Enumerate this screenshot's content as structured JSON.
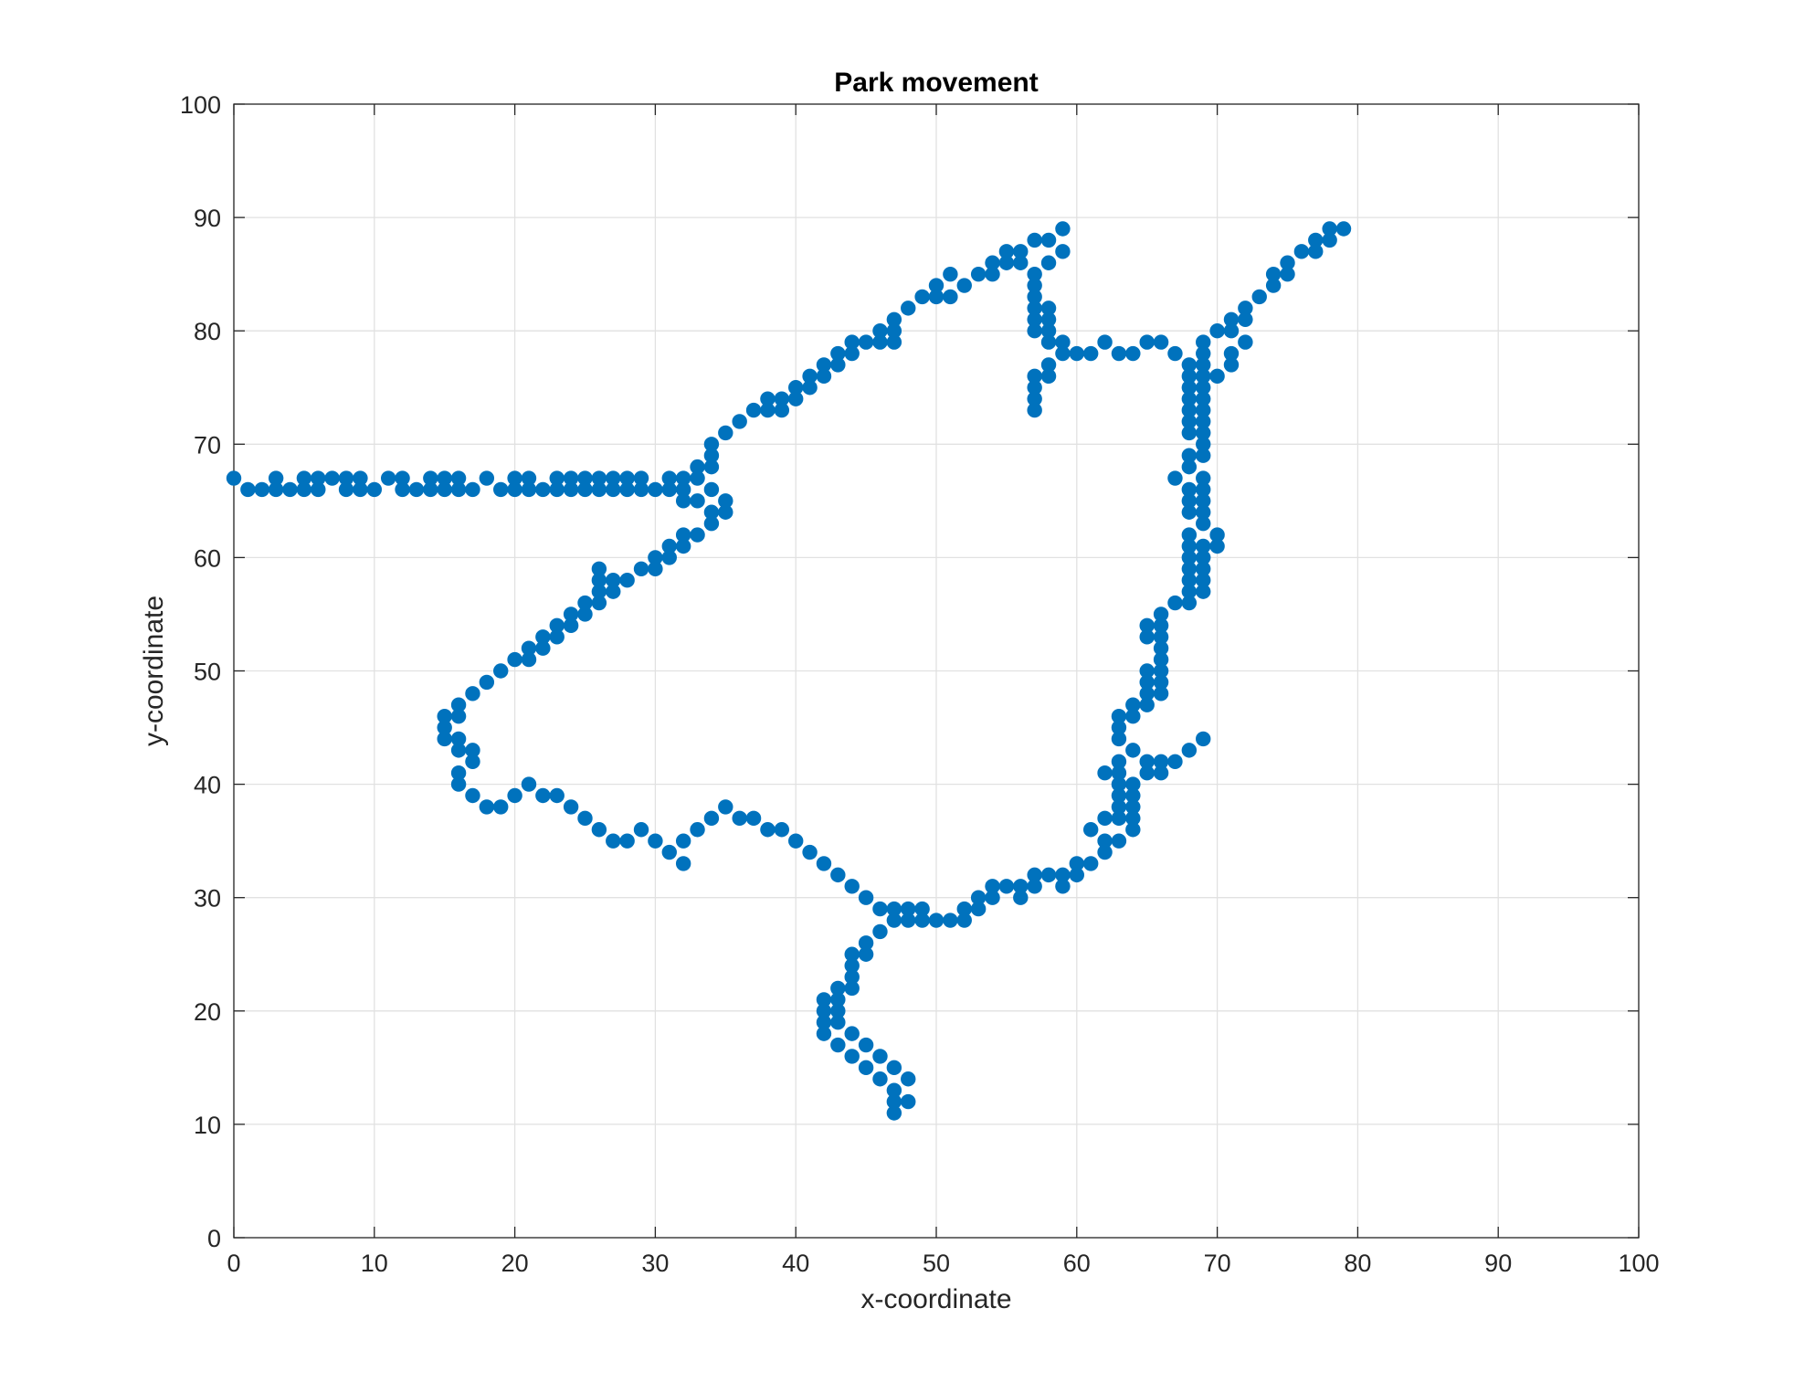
{
  "chart_data": {
    "type": "scatter",
    "title": "Park movement",
    "xlabel": "x-coordinate",
    "ylabel": "y-coordinate",
    "xlim": [
      0,
      100
    ],
    "ylim": [
      0,
      100
    ],
    "xticks": [
      "0",
      "10",
      "20",
      "30",
      "40",
      "50",
      "60",
      "70",
      "80",
      "90",
      "100"
    ],
    "yticks": [
      "0",
      "10",
      "20",
      "30",
      "40",
      "50",
      "60",
      "70",
      "80",
      "90",
      "100"
    ],
    "grid": true,
    "marker_color": "#0072BD",
    "points": [
      [
        0,
        67
      ],
      [
        1,
        66
      ],
      [
        2,
        66
      ],
      [
        3,
        67
      ],
      [
        3,
        66
      ],
      [
        4,
        66
      ],
      [
        5,
        67
      ],
      [
        5,
        66
      ],
      [
        6,
        67
      ],
      [
        6,
        66
      ],
      [
        7,
        67
      ],
      [
        8,
        67
      ],
      [
        8,
        66
      ],
      [
        9,
        67
      ],
      [
        9,
        66
      ],
      [
        10,
        66
      ],
      [
        11,
        67
      ],
      [
        12,
        67
      ],
      [
        12,
        66
      ],
      [
        13,
        66
      ],
      [
        14,
        67
      ],
      [
        14,
        66
      ],
      [
        15,
        67
      ],
      [
        15,
        66
      ],
      [
        16,
        67
      ],
      [
        16,
        66
      ],
      [
        17,
        66
      ],
      [
        18,
        67
      ],
      [
        19,
        66
      ],
      [
        20,
        67
      ],
      [
        20,
        66
      ],
      [
        21,
        67
      ],
      [
        21,
        66
      ],
      [
        22,
        66
      ],
      [
        23,
        67
      ],
      [
        23,
        66
      ],
      [
        24,
        67
      ],
      [
        24,
        66
      ],
      [
        25,
        67
      ],
      [
        25,
        66
      ],
      [
        26,
        67
      ],
      [
        26,
        66
      ],
      [
        27,
        67
      ],
      [
        27,
        66
      ],
      [
        28,
        67
      ],
      [
        28,
        66
      ],
      [
        29,
        67
      ],
      [
        29,
        66
      ],
      [
        30,
        66
      ],
      [
        31,
        67
      ],
      [
        31,
        66
      ],
      [
        32,
        67
      ],
      [
        32,
        66
      ],
      [
        32,
        65
      ],
      [
        33,
        68
      ],
      [
        33,
        67
      ],
      [
        33,
        65
      ],
      [
        34,
        70
      ],
      [
        34,
        69
      ],
      [
        34,
        68
      ],
      [
        34,
        66
      ],
      [
        34,
        64
      ],
      [
        34,
        63
      ],
      [
        35,
        65
      ],
      [
        35,
        64
      ],
      [
        35,
        71
      ],
      [
        36,
        72
      ],
      [
        37,
        73
      ],
      [
        38,
        74
      ],
      [
        38,
        73
      ],
      [
        39,
        74
      ],
      [
        39,
        73
      ],
      [
        40,
        75
      ],
      [
        40,
        74
      ],
      [
        41,
        76
      ],
      [
        41,
        75
      ],
      [
        42,
        77
      ],
      [
        42,
        76
      ],
      [
        43,
        78
      ],
      [
        43,
        77
      ],
      [
        44,
        79
      ],
      [
        44,
        78
      ],
      [
        45,
        79
      ],
      [
        46,
        80
      ],
      [
        46,
        79
      ],
      [
        47,
        81
      ],
      [
        47,
        80
      ],
      [
        47,
        79
      ],
      [
        48,
        82
      ],
      [
        49,
        83
      ],
      [
        50,
        84
      ],
      [
        50,
        83
      ],
      [
        51,
        85
      ],
      [
        51,
        83
      ],
      [
        52,
        84
      ],
      [
        53,
        85
      ],
      [
        54,
        86
      ],
      [
        54,
        85
      ],
      [
        55,
        87
      ],
      [
        55,
        86
      ],
      [
        56,
        87
      ],
      [
        56,
        86
      ],
      [
        57,
        88
      ],
      [
        57,
        85
      ],
      [
        57,
        84
      ],
      [
        57,
        83
      ],
      [
        57,
        82
      ],
      [
        57,
        81
      ],
      [
        57,
        80
      ],
      [
        57,
        76
      ],
      [
        57,
        75
      ],
      [
        57,
        74
      ],
      [
        57,
        73
      ],
      [
        58,
        88
      ],
      [
        58,
        86
      ],
      [
        58,
        82
      ],
      [
        58,
        81
      ],
      [
        58,
        80
      ],
      [
        58,
        79
      ],
      [
        58,
        77
      ],
      [
        58,
        76
      ],
      [
        59,
        89
      ],
      [
        59,
        87
      ],
      [
        59,
        79
      ],
      [
        59,
        78
      ],
      [
        60,
        78
      ],
      [
        61,
        78
      ],
      [
        62,
        79
      ],
      [
        63,
        78
      ],
      [
        64,
        78
      ],
      [
        65,
        79
      ],
      [
        66,
        79
      ],
      [
        67,
        78
      ],
      [
        68,
        77
      ],
      [
        68,
        76
      ],
      [
        68,
        75
      ],
      [
        68,
        74
      ],
      [
        68,
        73
      ],
      [
        68,
        72
      ],
      [
        68,
        71
      ],
      [
        68,
        69
      ],
      [
        68,
        68
      ],
      [
        68,
        66
      ],
      [
        68,
        65
      ],
      [
        68,
        64
      ],
      [
        68,
        62
      ],
      [
        68,
        61
      ],
      [
        68,
        60
      ],
      [
        68,
        59
      ],
      [
        68,
        58
      ],
      [
        68,
        57
      ],
      [
        68,
        56
      ],
      [
        67,
        67
      ],
      [
        69,
        79
      ],
      [
        69,
        78
      ],
      [
        69,
        77
      ],
      [
        69,
        76
      ],
      [
        69,
        75
      ],
      [
        69,
        74
      ],
      [
        69,
        73
      ],
      [
        69,
        72
      ],
      [
        69,
        71
      ],
      [
        69,
        70
      ],
      [
        69,
        69
      ],
      [
        69,
        67
      ],
      [
        69,
        66
      ],
      [
        69,
        65
      ],
      [
        69,
        64
      ],
      [
        69,
        63
      ],
      [
        69,
        61
      ],
      [
        69,
        60
      ],
      [
        69,
        59
      ],
      [
        69,
        58
      ],
      [
        69,
        57
      ],
      [
        70,
        80
      ],
      [
        70,
        76
      ],
      [
        70,
        62
      ],
      [
        70,
        61
      ],
      [
        71,
        81
      ],
      [
        71,
        80
      ],
      [
        71,
        78
      ],
      [
        71,
        77
      ],
      [
        72,
        82
      ],
      [
        72,
        81
      ],
      [
        72,
        79
      ],
      [
        73,
        83
      ],
      [
        74,
        85
      ],
      [
        74,
        84
      ],
      [
        75,
        86
      ],
      [
        75,
        85
      ],
      [
        76,
        87
      ],
      [
        77,
        88
      ],
      [
        77,
        87
      ],
      [
        78,
        89
      ],
      [
        78,
        88
      ],
      [
        79,
        89
      ],
      [
        67,
        56
      ],
      [
        66,
        55
      ],
      [
        66,
        54
      ],
      [
        66,
        53
      ],
      [
        66,
        52
      ],
      [
        66,
        51
      ],
      [
        66,
        50
      ],
      [
        66,
        49
      ],
      [
        66,
        48
      ],
      [
        65,
        54
      ],
      [
        65,
        53
      ],
      [
        65,
        50
      ],
      [
        65,
        49
      ],
      [
        65,
        48
      ],
      [
        65,
        47
      ],
      [
        64,
        47
      ],
      [
        64,
        46
      ],
      [
        63,
        46
      ],
      [
        63,
        45
      ],
      [
        63,
        44
      ],
      [
        64,
        43
      ],
      [
        63,
        42
      ],
      [
        63,
        41
      ],
      [
        62,
        41
      ],
      [
        63,
        40
      ],
      [
        63,
        39
      ],
      [
        63,
        38
      ],
      [
        63,
        37
      ],
      [
        64,
        40
      ],
      [
        64,
        39
      ],
      [
        64,
        38
      ],
      [
        64,
        37
      ],
      [
        64,
        36
      ],
      [
        65,
        42
      ],
      [
        65,
        41
      ],
      [
        66,
        42
      ],
      [
        66,
        41
      ],
      [
        67,
        42
      ],
      [
        68,
        43
      ],
      [
        69,
        44
      ],
      [
        62,
        37
      ],
      [
        61,
        36
      ],
      [
        63,
        35
      ],
      [
        62,
        35
      ],
      [
        62,
        34
      ],
      [
        61,
        33
      ],
      [
        60,
        33
      ],
      [
        60,
        32
      ],
      [
        59,
        32
      ],
      [
        59,
        31
      ],
      [
        58,
        32
      ],
      [
        57,
        32
      ],
      [
        57,
        31
      ],
      [
        56,
        31
      ],
      [
        56,
        30
      ],
      [
        55,
        31
      ],
      [
        54,
        31
      ],
      [
        54,
        30
      ],
      [
        53,
        30
      ],
      [
        53,
        29
      ],
      [
        52,
        29
      ],
      [
        52,
        28
      ],
      [
        51,
        28
      ],
      [
        50,
        28
      ],
      [
        49,
        29
      ],
      [
        49,
        28
      ],
      [
        48,
        29
      ],
      [
        48,
        28
      ],
      [
        47,
        29
      ],
      [
        47,
        28
      ],
      [
        46,
        29
      ],
      [
        45,
        30
      ],
      [
        44,
        31
      ],
      [
        43,
        32
      ],
      [
        42,
        33
      ],
      [
        41,
        34
      ],
      [
        40,
        35
      ],
      [
        39,
        36
      ],
      [
        38,
        36
      ],
      [
        37,
        37
      ],
      [
        36,
        37
      ],
      [
        35,
        38
      ],
      [
        34,
        37
      ],
      [
        33,
        36
      ],
      [
        32,
        35
      ],
      [
        32,
        33
      ],
      [
        31,
        34
      ],
      [
        30,
        35
      ],
      [
        29,
        36
      ],
      [
        28,
        35
      ],
      [
        27,
        35
      ],
      [
        26,
        36
      ],
      [
        25,
        37
      ],
      [
        24,
        38
      ],
      [
        23,
        39
      ],
      [
        22,
        39
      ],
      [
        21,
        40
      ],
      [
        20,
        39
      ],
      [
        19,
        38
      ],
      [
        18,
        38
      ],
      [
        17,
        39
      ],
      [
        16,
        40
      ],
      [
        16,
        41
      ],
      [
        17,
        42
      ],
      [
        17,
        43
      ],
      [
        16,
        43
      ],
      [
        16,
        44
      ],
      [
        15,
        44
      ],
      [
        15,
        45
      ],
      [
        15,
        46
      ],
      [
        16,
        46
      ],
      [
        16,
        47
      ],
      [
        17,
        48
      ],
      [
        18,
        49
      ],
      [
        19,
        50
      ],
      [
        20,
        51
      ],
      [
        21,
        51
      ],
      [
        21,
        52
      ],
      [
        22,
        52
      ],
      [
        22,
        53
      ],
      [
        23,
        53
      ],
      [
        23,
        54
      ],
      [
        24,
        54
      ],
      [
        24,
        55
      ],
      [
        25,
        55
      ],
      [
        25,
        56
      ],
      [
        26,
        56
      ],
      [
        26,
        57
      ],
      [
        26,
        58
      ],
      [
        26,
        59
      ],
      [
        27,
        58
      ],
      [
        27,
        57
      ],
      [
        28,
        58
      ],
      [
        29,
        59
      ],
      [
        30,
        59
      ],
      [
        30,
        60
      ],
      [
        31,
        60
      ],
      [
        31,
        61
      ],
      [
        32,
        61
      ],
      [
        32,
        62
      ],
      [
        33,
        62
      ],
      [
        46,
        27
      ],
      [
        45,
        26
      ],
      [
        45,
        25
      ],
      [
        44,
        25
      ],
      [
        44,
        24
      ],
      [
        44,
        23
      ],
      [
        44,
        22
      ],
      [
        43,
        22
      ],
      [
        43,
        21
      ],
      [
        42,
        21
      ],
      [
        43,
        20
      ],
      [
        42,
        20
      ],
      [
        43,
        19
      ],
      [
        42,
        19
      ],
      [
        42,
        18
      ],
      [
        43,
        17
      ],
      [
        44,
        18
      ],
      [
        44,
        16
      ],
      [
        45,
        17
      ],
      [
        45,
        15
      ],
      [
        46,
        16
      ],
      [
        46,
        14
      ],
      [
        47,
        15
      ],
      [
        47,
        13
      ],
      [
        47,
        12
      ],
      [
        47,
        11
      ],
      [
        48,
        14
      ],
      [
        48,
        12
      ]
    ]
  }
}
